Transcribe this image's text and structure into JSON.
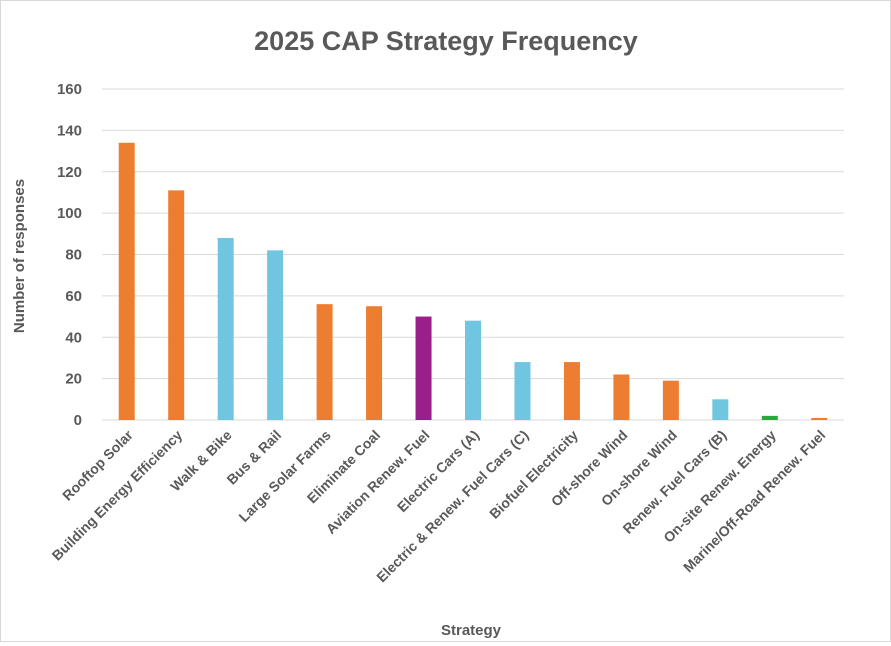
{
  "chart_data": {
    "type": "bar",
    "title": "2025 CAP Strategy Frequency",
    "xlabel": "Strategy",
    "ylabel": "Number of responses",
    "ylim": [
      0,
      160
    ],
    "yticks": [
      0,
      20,
      40,
      60,
      80,
      100,
      120,
      140,
      160
    ],
    "grid": true,
    "legend": "none",
    "categories": [
      "Rooftop Solar",
      "Building Energy Efficiency",
      "Walk & Bike",
      "Bus & Rail",
      "Large Solar Farms",
      "Eliminate Coal",
      "Aviation Renew. Fuel",
      "Electric Cars (A)",
      "Electric & Renew. Fuel Cars (C)",
      "Biofuel Electricity",
      "Off-shore Wind",
      "On-shore Wind",
      "Renew. Fuel Cars (B)",
      "On-site Renew. Energy",
      "Marine/Off-Road Renew. Fuel"
    ],
    "values": [
      134,
      111,
      88,
      82,
      56,
      55,
      50,
      48,
      28,
      28,
      22,
      19,
      10,
      2,
      1
    ],
    "colors": [
      "#ed7d31",
      "#ed7d31",
      "#70c6e0",
      "#70c6e0",
      "#ed7d31",
      "#ed7d31",
      "#9b1f8a",
      "#70c6e0",
      "#70c6e0",
      "#ed7d31",
      "#ed7d31",
      "#ed7d31",
      "#70c6e0",
      "#2aa83c",
      "#ed7d31"
    ],
    "gridline_color": "#d9d9d9"
  }
}
